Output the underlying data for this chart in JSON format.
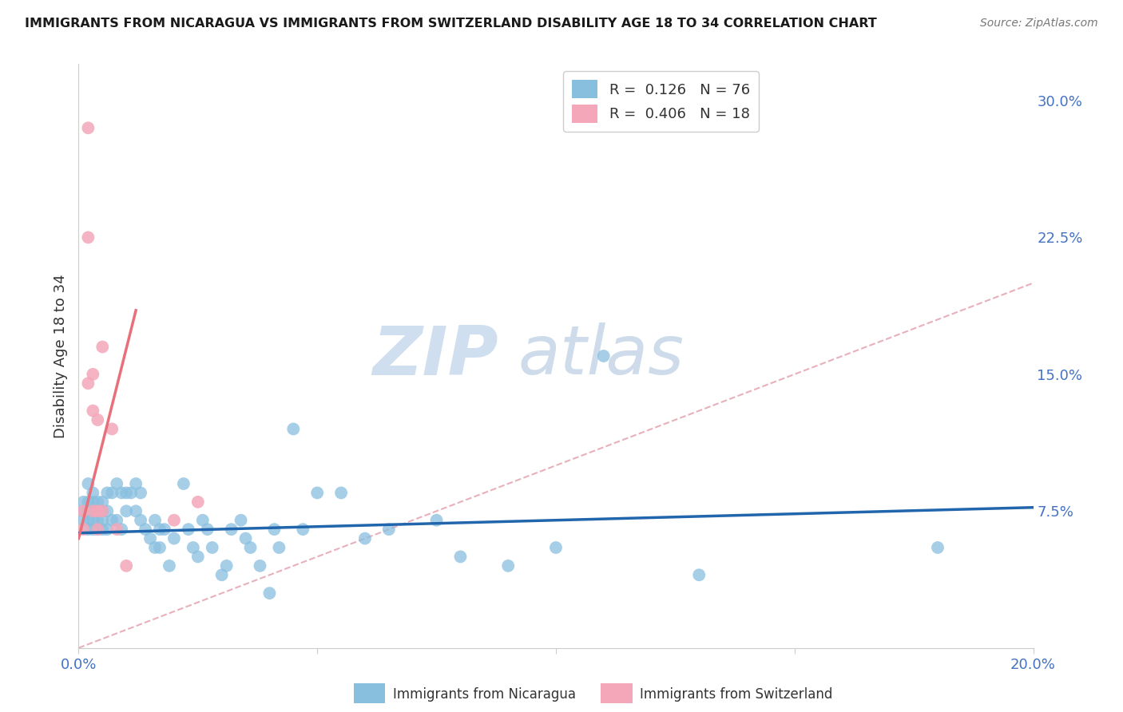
{
  "title": "IMMIGRANTS FROM NICARAGUA VS IMMIGRANTS FROM SWITZERLAND DISABILITY AGE 18 TO 34 CORRELATION CHART",
  "source": "Source: ZipAtlas.com",
  "ylabel": "Disability Age 18 to 34",
  "xlim": [
    0.0,
    0.2
  ],
  "ylim": [
    0.0,
    0.32
  ],
  "xticks": [
    0.0,
    0.05,
    0.1,
    0.15,
    0.2
  ],
  "xtick_labels": [
    "0.0%",
    "",
    "",
    "",
    "20.0%"
  ],
  "ytick_labels_right": [
    "7.5%",
    "15.0%",
    "22.5%",
    "30.0%"
  ],
  "ytick_vals_right": [
    0.075,
    0.15,
    0.225,
    0.3
  ],
  "legend_blue_R": "0.126",
  "legend_blue_N": "76",
  "legend_pink_R": "0.406",
  "legend_pink_N": "18",
  "blue_color": "#88bfdf",
  "pink_color": "#f4a7b9",
  "trendline_blue_color": "#2166ac",
  "trendline_pink_color": "#e8707a",
  "diagonal_color": "#e8b0bb",
  "background_color": "#ffffff",
  "grid_color": "#e8e8e8",
  "watermark_zip": "ZIP",
  "watermark_atlas": "atlas",
  "legend_labels": [
    "Immigrants from Nicaragua",
    "Immigrants from Switzerland"
  ],
  "blue_x": [
    0.001,
    0.001,
    0.001,
    0.002,
    0.002,
    0.002,
    0.002,
    0.002,
    0.003,
    0.003,
    0.003,
    0.003,
    0.003,
    0.004,
    0.004,
    0.004,
    0.004,
    0.005,
    0.005,
    0.005,
    0.005,
    0.006,
    0.006,
    0.006,
    0.007,
    0.007,
    0.008,
    0.008,
    0.009,
    0.009,
    0.01,
    0.01,
    0.011,
    0.012,
    0.012,
    0.013,
    0.013,
    0.014,
    0.015,
    0.016,
    0.016,
    0.017,
    0.017,
    0.018,
    0.019,
    0.02,
    0.022,
    0.023,
    0.024,
    0.025,
    0.026,
    0.027,
    0.028,
    0.03,
    0.031,
    0.032,
    0.034,
    0.035,
    0.036,
    0.038,
    0.04,
    0.041,
    0.042,
    0.045,
    0.047,
    0.05,
    0.055,
    0.06,
    0.065,
    0.075,
    0.08,
    0.09,
    0.1,
    0.11,
    0.13,
    0.18
  ],
  "blue_y": [
    0.08,
    0.075,
    0.07,
    0.09,
    0.08,
    0.07,
    0.065,
    0.075,
    0.075,
    0.085,
    0.08,
    0.07,
    0.065,
    0.075,
    0.07,
    0.065,
    0.08,
    0.08,
    0.075,
    0.07,
    0.065,
    0.085,
    0.075,
    0.065,
    0.085,
    0.07,
    0.09,
    0.07,
    0.085,
    0.065,
    0.085,
    0.075,
    0.085,
    0.09,
    0.075,
    0.085,
    0.07,
    0.065,
    0.06,
    0.07,
    0.055,
    0.065,
    0.055,
    0.065,
    0.045,
    0.06,
    0.09,
    0.065,
    0.055,
    0.05,
    0.07,
    0.065,
    0.055,
    0.04,
    0.045,
    0.065,
    0.07,
    0.06,
    0.055,
    0.045,
    0.03,
    0.065,
    0.055,
    0.12,
    0.065,
    0.085,
    0.085,
    0.06,
    0.065,
    0.07,
    0.05,
    0.045,
    0.055,
    0.16,
    0.04,
    0.055
  ],
  "pink_x": [
    0.001,
    0.001,
    0.002,
    0.002,
    0.002,
    0.003,
    0.003,
    0.003,
    0.004,
    0.004,
    0.004,
    0.005,
    0.005,
    0.007,
    0.008,
    0.01,
    0.02,
    0.025
  ],
  "pink_y": [
    0.075,
    0.065,
    0.285,
    0.225,
    0.145,
    0.075,
    0.15,
    0.13,
    0.125,
    0.075,
    0.065,
    0.165,
    0.075,
    0.12,
    0.065,
    0.045,
    0.07,
    0.08
  ],
  "blue_trend_x": [
    0.0,
    0.2
  ],
  "blue_trend_y": [
    0.063,
    0.077
  ],
  "pink_trend_x": [
    0.0,
    0.012
  ],
  "pink_trend_y": [
    0.06,
    0.185
  ]
}
